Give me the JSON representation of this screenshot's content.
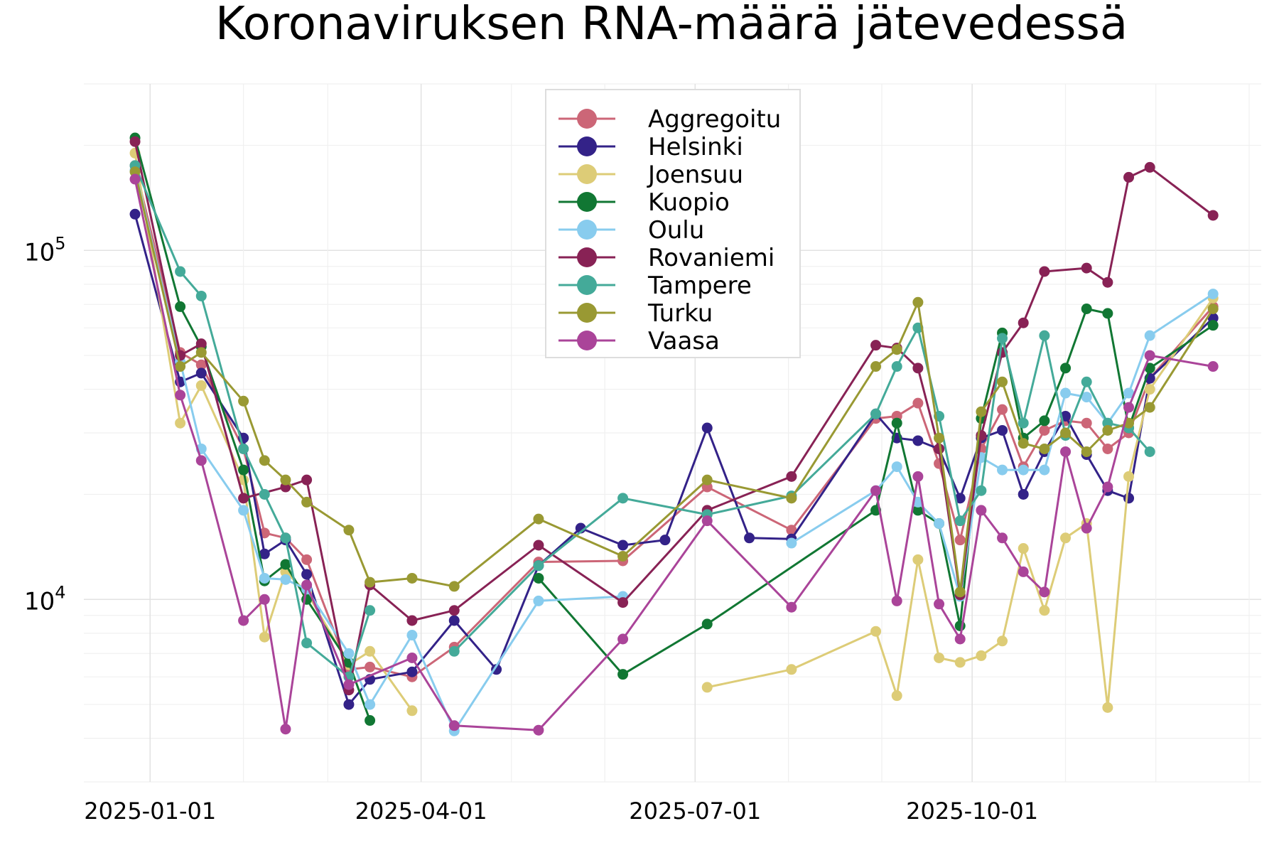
{
  "chart_data": {
    "type": "line",
    "title": "Koronaviruksen RNA-määrä jätevedessä",
    "xlabel": "",
    "ylabel": "",
    "yscale": "log",
    "ylim": [
      3000,
      300000
    ],
    "xlim": [
      "2024-12-10",
      "2026-01-05"
    ],
    "grid": true,
    "legend_position": "top-center",
    "x_ticks": [
      {
        "date": "2025-01-01",
        "label": "2025-01-01"
      },
      {
        "date": "2025-04-01",
        "label": "2025-04-01"
      },
      {
        "date": "2025-07-01",
        "label": "2025-07-01"
      },
      {
        "date": "2025-10-01",
        "label": "2025-10-01"
      }
    ],
    "y_ticks": [
      {
        "value": 10000,
        "base": "10",
        "exp": "4"
      },
      {
        "value": 100000,
        "base": "10",
        "exp": "5"
      }
    ],
    "series": [
      {
        "name": "Aggregoitu",
        "color": "#cc6677",
        "points": [
          [
            "2024-12-27",
            175000
          ],
          [
            "2025-01-11",
            51000
          ],
          [
            "2025-01-18",
            47000
          ],
          [
            "2025-02-01",
            27000
          ],
          [
            "2025-02-08",
            15500
          ],
          [
            "2025-02-15",
            15000
          ],
          [
            "2025-02-22",
            13000
          ],
          [
            "2025-03-08",
            6300
          ],
          [
            "2025-03-15",
            6400
          ],
          [
            "2025-03-29",
            6000
          ],
          [
            "2025-04-12",
            7300
          ],
          [
            "2025-05-10",
            12800
          ],
          [
            "2025-06-07",
            12900
          ],
          [
            "2025-07-05",
            21000
          ],
          [
            "2025-08-02",
            15800
          ],
          [
            "2025-08-30",
            33000
          ],
          [
            "2025-09-06",
            33500
          ],
          [
            "2025-09-13",
            36500
          ],
          [
            "2025-09-20",
            24500
          ],
          [
            "2025-09-27",
            14800
          ],
          [
            "2025-10-04",
            27000
          ],
          [
            "2025-10-11",
            35000
          ],
          [
            "2025-10-18",
            24000
          ],
          [
            "2025-10-25",
            30500
          ],
          [
            "2025-11-01",
            32500
          ],
          [
            "2025-11-08",
            32000
          ],
          [
            "2025-11-15",
            27000
          ],
          [
            "2025-11-22",
            30000
          ],
          [
            "2025-11-29",
            43000
          ],
          [
            "2025-12-20",
            69000
          ]
        ]
      },
      {
        "name": "Helsinki",
        "color": "#332288",
        "points": [
          [
            "2024-12-27",
            127000
          ],
          [
            "2025-01-11",
            42000
          ],
          [
            "2025-01-18",
            44500
          ],
          [
            "2025-02-01",
            29000
          ],
          [
            "2025-02-08",
            13500
          ],
          [
            "2025-02-15",
            14800
          ],
          [
            "2025-02-22",
            11800
          ],
          [
            "2025-03-08",
            5000
          ],
          [
            "2025-03-15",
            5900
          ],
          [
            "2025-03-29",
            6200
          ],
          [
            "2025-04-12",
            8700
          ],
          [
            "2025-04-26",
            6300
          ],
          [
            "2025-05-10",
            12500
          ],
          [
            "2025-05-24",
            16000
          ],
          [
            "2025-06-07",
            14300
          ],
          [
            "2025-06-21",
            14800
          ],
          [
            "2025-07-05",
            31000
          ],
          [
            "2025-07-19",
            15000
          ],
          [
            "2025-08-02",
            14900
          ],
          [
            "2025-08-30",
            34000
          ],
          [
            "2025-09-06",
            29000
          ],
          [
            "2025-09-13",
            28500
          ],
          [
            "2025-09-20",
            27000
          ],
          [
            "2025-09-27",
            19500
          ],
          [
            "2025-10-04",
            29000
          ],
          [
            "2025-10-11",
            30500
          ],
          [
            "2025-10-18",
            20000
          ],
          [
            "2025-10-25",
            26500
          ],
          [
            "2025-11-01",
            33500
          ],
          [
            "2025-11-08",
            26000
          ],
          [
            "2025-11-15",
            20500
          ],
          [
            "2025-11-22",
            19500
          ],
          [
            "2025-11-29",
            43000
          ],
          [
            "2025-12-20",
            64000
          ]
        ]
      },
      {
        "name": "Joensuu",
        "color": "#ddcc77",
        "points": [
          [
            "2024-12-27",
            190000
          ],
          [
            "2025-01-11",
            32000
          ],
          [
            "2025-01-18",
            41000
          ],
          [
            "2025-02-01",
            22000
          ],
          [
            "2025-02-08",
            7800
          ],
          [
            "2025-02-15",
            12000
          ],
          [
            "2025-02-22",
            10500
          ],
          [
            "2025-03-08",
            6500
          ],
          [
            "2025-03-15",
            7100
          ],
          [
            "2025-03-29",
            4800
          ],
          null,
          [
            "2025-07-05",
            5600
          ],
          [
            "2025-08-02",
            6300
          ],
          [
            "2025-08-30",
            8100
          ],
          [
            "2025-09-06",
            5300
          ],
          [
            "2025-09-13",
            13000
          ],
          [
            "2025-09-20",
            6800
          ],
          [
            "2025-09-27",
            6600
          ],
          [
            "2025-10-04",
            6900
          ],
          [
            "2025-10-11",
            7600
          ],
          [
            "2025-10-18",
            14000
          ],
          [
            "2025-10-25",
            9300
          ],
          [
            "2025-11-01",
            15000
          ],
          [
            "2025-11-08",
            16500
          ],
          [
            "2025-11-15",
            4900
          ],
          [
            "2025-11-22",
            22500
          ],
          [
            "2025-11-29",
            40000
          ],
          [
            "2025-12-20",
            73000
          ]
        ]
      },
      {
        "name": "Kuopio",
        "color": "#117733",
        "points": [
          [
            "2024-12-27",
            210000
          ],
          [
            "2025-01-11",
            69000
          ],
          [
            "2025-01-18",
            53000
          ],
          [
            "2025-02-01",
            23500
          ],
          [
            "2025-02-08",
            11300
          ],
          [
            "2025-02-15",
            12600
          ],
          [
            "2025-02-22",
            10000
          ],
          [
            "2025-03-08",
            6600
          ],
          [
            "2025-03-15",
            4500
          ],
          null,
          [
            "2025-05-10",
            11500
          ],
          [
            "2025-06-07",
            6100
          ],
          [
            "2025-07-05",
            8500
          ],
          [
            "2025-08-30",
            18000
          ],
          [
            "2025-09-06",
            32000
          ],
          [
            "2025-09-13",
            18000
          ],
          [
            "2025-09-20",
            16500
          ],
          [
            "2025-09-27",
            8400
          ],
          [
            "2025-10-04",
            33000
          ],
          [
            "2025-10-11",
            58000
          ],
          [
            "2025-10-18",
            29000
          ],
          [
            "2025-10-25",
            32500
          ],
          [
            "2025-11-01",
            46000
          ],
          [
            "2025-11-08",
            68000
          ],
          [
            "2025-11-15",
            66000
          ],
          [
            "2025-11-22",
            31000
          ],
          [
            "2025-11-29",
            46000
          ],
          [
            "2025-12-20",
            61000
          ]
        ]
      },
      {
        "name": "Oulu",
        "color": "#88ccee",
        "points": [
          [
            "2024-12-27",
            170000
          ],
          [
            "2025-01-11",
            48000
          ],
          [
            "2025-01-18",
            27000
          ],
          [
            "2025-02-01",
            18000
          ],
          [
            "2025-02-08",
            11500
          ],
          [
            "2025-02-15",
            11400
          ],
          [
            "2025-02-22",
            10700
          ],
          [
            "2025-03-08",
            7000
          ],
          [
            "2025-03-15",
            5000
          ],
          [
            "2025-03-29",
            7900
          ],
          [
            "2025-04-12",
            4200
          ],
          [
            "2025-05-10",
            9900
          ],
          [
            "2025-06-07",
            10200
          ],
          null,
          [
            "2025-08-02",
            14500
          ],
          [
            "2025-08-30",
            20500
          ],
          [
            "2025-09-06",
            24000
          ],
          [
            "2025-09-13",
            19000
          ],
          [
            "2025-09-20",
            16500
          ],
          [
            "2025-09-27",
            10200
          ],
          [
            "2025-10-04",
            25500
          ],
          [
            "2025-10-11",
            23500
          ],
          [
            "2025-10-18",
            23500
          ],
          [
            "2025-10-25",
            23500
          ],
          [
            "2025-11-01",
            39000
          ],
          [
            "2025-11-08",
            38000
          ],
          [
            "2025-11-15",
            32000
          ],
          [
            "2025-11-22",
            39000
          ],
          [
            "2025-11-29",
            57000
          ],
          [
            "2025-12-20",
            75000
          ]
        ]
      },
      {
        "name": "Rovaniemi",
        "color": "#882255",
        "points": [
          [
            "2024-12-27",
            205000
          ],
          [
            "2025-01-11",
            50000
          ],
          [
            "2025-01-18",
            54000
          ],
          [
            "2025-02-01",
            19500
          ],
          [
            "2025-02-15",
            21000
          ],
          [
            "2025-02-22",
            22000
          ],
          [
            "2025-03-08",
            5500
          ],
          [
            "2025-03-15",
            11000
          ],
          [
            "2025-03-29",
            8700
          ],
          [
            "2025-04-12",
            9300
          ],
          [
            "2025-05-10",
            14300
          ],
          [
            "2025-06-07",
            9800
          ],
          [
            "2025-07-05",
            18000
          ],
          [
            "2025-08-02",
            22500
          ],
          [
            "2025-08-30",
            53500
          ],
          [
            "2025-09-06",
            52500
          ],
          [
            "2025-09-13",
            46000
          ],
          [
            "2025-09-20",
            27000
          ],
          [
            "2025-09-27",
            10300
          ],
          [
            "2025-10-04",
            29500
          ],
          [
            "2025-10-11",
            51000
          ],
          [
            "2025-10-18",
            62000
          ],
          [
            "2025-10-25",
            87000
          ],
          [
            "2025-11-08",
            89000
          ],
          [
            "2025-11-15",
            81000
          ],
          [
            "2025-11-22",
            162000
          ],
          [
            "2025-11-29",
            173000
          ],
          [
            "2025-12-20",
            126000
          ]
        ]
      },
      {
        "name": "Tampere",
        "color": "#44aa99",
        "points": [
          [
            "2024-12-27",
            175000
          ],
          [
            "2025-01-11",
            87000
          ],
          [
            "2025-01-18",
            74000
          ],
          [
            "2025-02-01",
            27000
          ],
          [
            "2025-02-08",
            20000
          ],
          [
            "2025-02-15",
            15000
          ],
          [
            "2025-02-22",
            7500
          ],
          [
            "2025-03-08",
            6000
          ],
          [
            "2025-03-15",
            9300
          ],
          null,
          [
            "2025-04-12",
            7100
          ],
          [
            "2025-05-10",
            12500
          ],
          [
            "2025-06-07",
            19500
          ],
          [
            "2025-07-05",
            17500
          ],
          [
            "2025-08-02",
            19800
          ],
          [
            "2025-08-30",
            34000
          ],
          [
            "2025-09-06",
            46500
          ],
          [
            "2025-09-13",
            60000
          ],
          [
            "2025-09-20",
            33500
          ],
          [
            "2025-09-27",
            16800
          ],
          [
            "2025-10-04",
            20500
          ],
          [
            "2025-10-11",
            56000
          ],
          [
            "2025-10-18",
            32000
          ],
          [
            "2025-10-25",
            57000
          ],
          [
            "2025-11-01",
            29500
          ],
          [
            "2025-11-08",
            42000
          ],
          [
            "2025-11-15",
            32000
          ],
          [
            "2025-11-22",
            31000
          ],
          [
            "2025-11-29",
            26500
          ]
        ]
      },
      {
        "name": "Turku",
        "color": "#999933",
        "points": [
          [
            "2024-12-27",
            168000
          ],
          [
            "2025-01-11",
            46500
          ],
          [
            "2025-01-18",
            51000
          ],
          [
            "2025-02-01",
            37000
          ],
          [
            "2025-02-08",
            25000
          ],
          [
            "2025-02-15",
            22000
          ],
          [
            "2025-02-22",
            19000
          ],
          [
            "2025-03-08",
            15800
          ],
          [
            "2025-03-15",
            11200
          ],
          [
            "2025-03-29",
            11500
          ],
          [
            "2025-04-12",
            10900
          ],
          [
            "2025-05-10",
            17000
          ],
          [
            "2025-06-07",
            13300
          ],
          [
            "2025-07-05",
            22000
          ],
          [
            "2025-08-02",
            19500
          ],
          [
            "2025-08-30",
            46500
          ],
          [
            "2025-09-06",
            52000
          ],
          [
            "2025-09-13",
            71000
          ],
          [
            "2025-09-20",
            29000
          ],
          [
            "2025-09-27",
            10500
          ],
          [
            "2025-10-04",
            34500
          ],
          [
            "2025-10-11",
            42000
          ],
          [
            "2025-10-18",
            28000
          ],
          [
            "2025-10-25",
            27000
          ],
          [
            "2025-11-01",
            30000
          ],
          [
            "2025-11-08",
            26500
          ],
          [
            "2025-11-15",
            30500
          ],
          [
            "2025-11-22",
            32000
          ],
          [
            "2025-11-29",
            35500
          ],
          [
            "2025-12-20",
            68000
          ]
        ]
      },
      {
        "name": "Vaasa",
        "color": "#aa4499",
        "points": [
          [
            "2024-12-27",
            160000
          ],
          [
            "2025-01-11",
            38500
          ],
          [
            "2025-01-18",
            25000
          ],
          [
            "2025-02-01",
            8700
          ],
          [
            "2025-02-08",
            10000
          ],
          [
            "2025-02-15",
            4250
          ],
          [
            "2025-02-22",
            11000
          ],
          [
            "2025-03-08",
            5700
          ],
          [
            "2025-03-29",
            6800
          ],
          [
            "2025-04-12",
            4350
          ],
          [
            "2025-05-10",
            4220
          ],
          [
            "2025-06-07",
            7700
          ],
          [
            "2025-07-05",
            16800
          ],
          [
            "2025-08-02",
            9500
          ],
          [
            "2025-08-30",
            20500
          ],
          [
            "2025-09-06",
            9900
          ],
          [
            "2025-09-13",
            22500
          ],
          [
            "2025-09-20",
            9700
          ],
          [
            "2025-09-27",
            7700
          ],
          [
            "2025-10-04",
            18000
          ],
          [
            "2025-10-11",
            15000
          ],
          [
            "2025-10-18",
            12000
          ],
          [
            "2025-10-25",
            10500
          ],
          [
            "2025-11-01",
            26500
          ],
          [
            "2025-11-08",
            16000
          ],
          [
            "2025-11-15",
            21000
          ],
          [
            "2025-11-22",
            35500
          ],
          [
            "2025-11-29",
            50000
          ],
          [
            "2025-12-20",
            46500
          ]
        ]
      }
    ]
  }
}
